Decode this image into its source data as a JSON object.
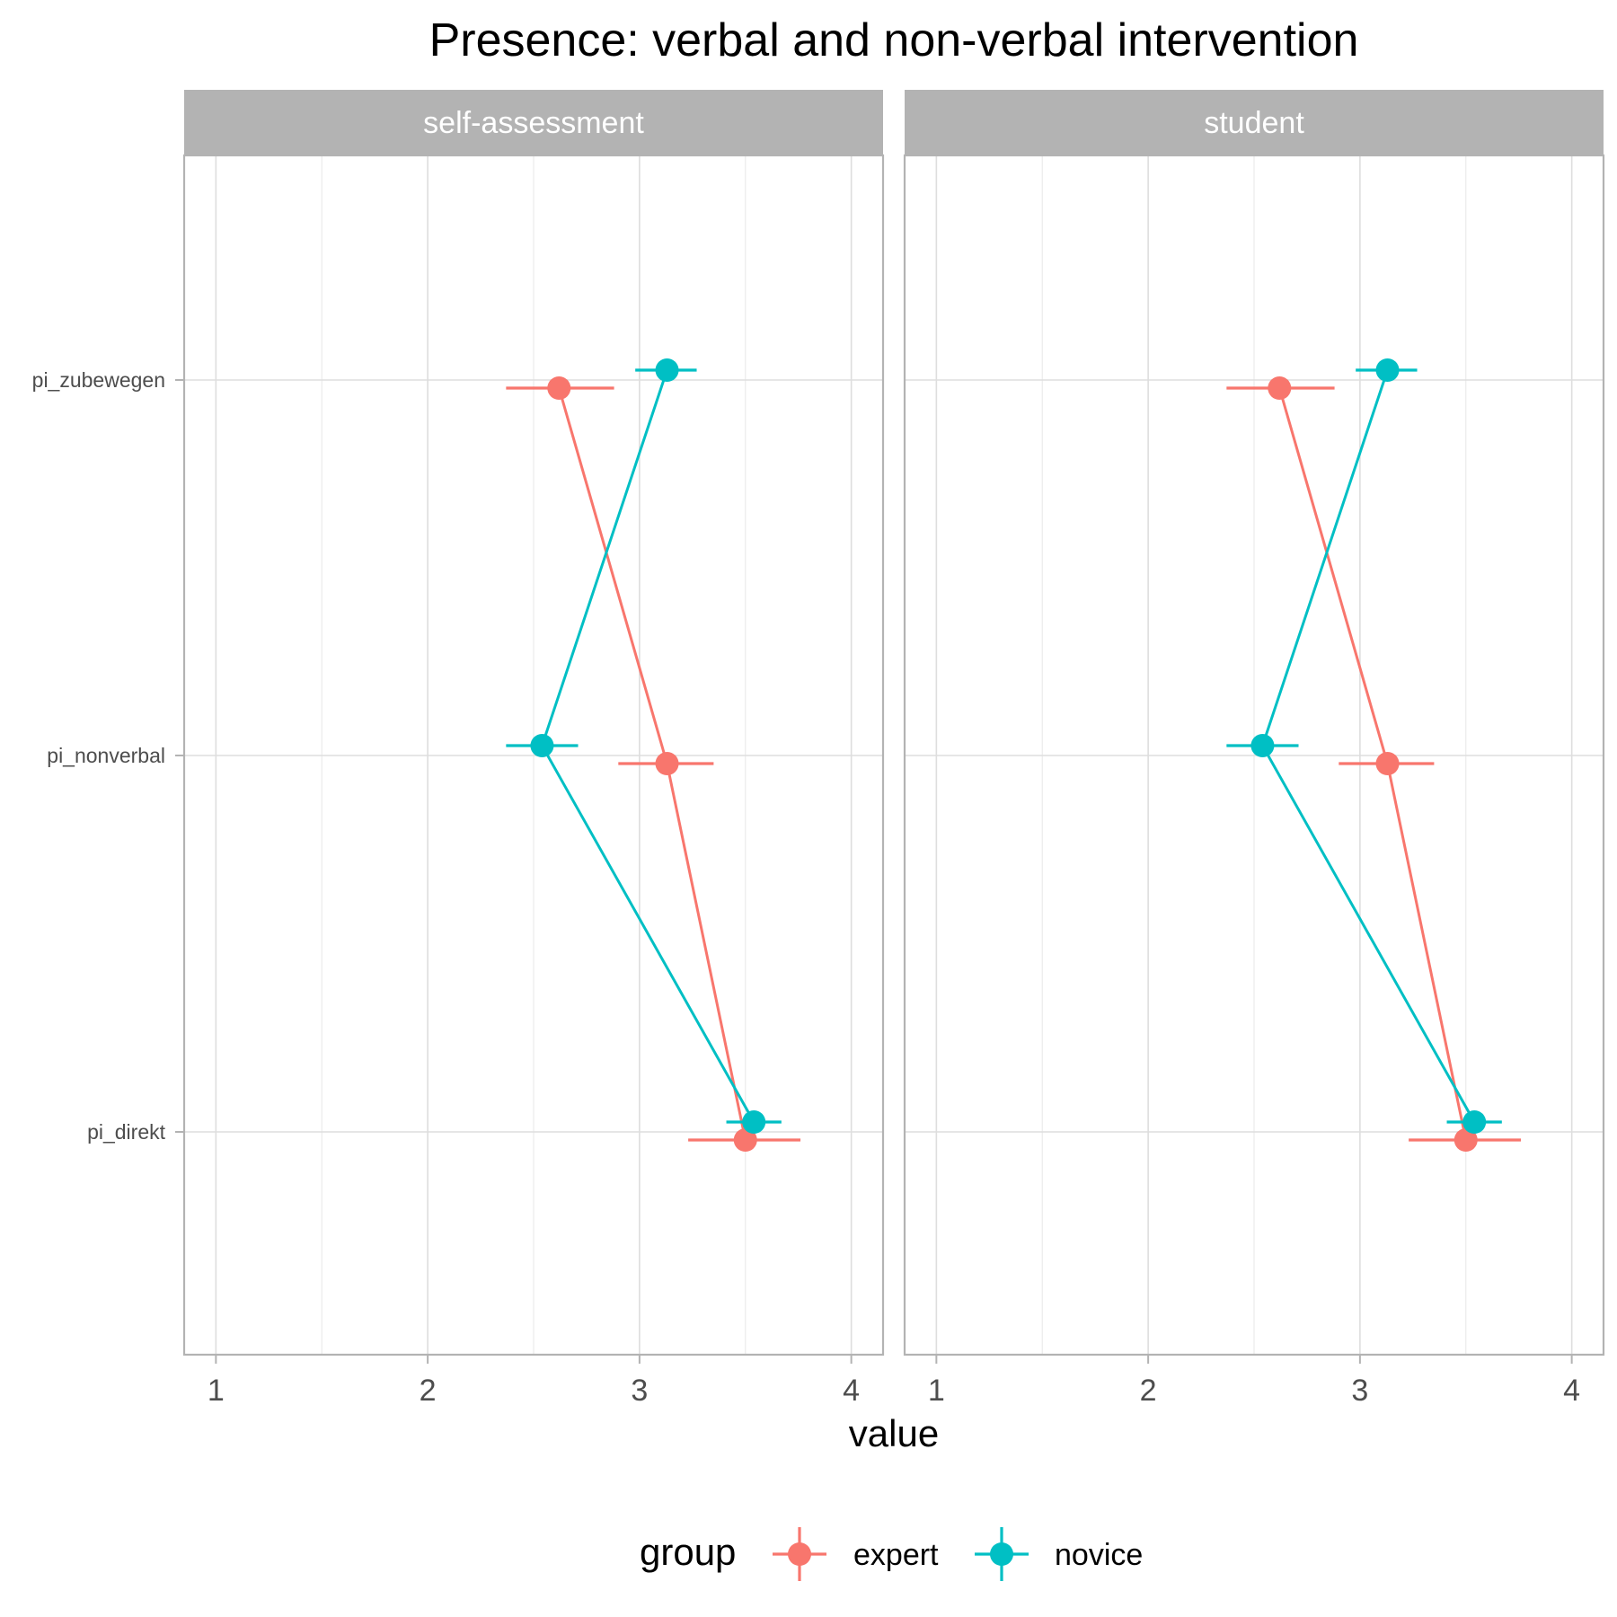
{
  "chart_data": {
    "type": "line",
    "title": "Presence: verbal and non-verbal intervention",
    "xlabel": "value",
    "ylabel": "",
    "xlim": [
      0.85,
      4.15
    ],
    "x_ticks": [
      "1",
      "2",
      "3",
      "4"
    ],
    "categories": [
      "pi_zubewegen",
      "pi_nonverbal",
      "pi_direkt"
    ],
    "grid": true,
    "legend": {
      "title": "group",
      "placement": "bottom"
    },
    "facets": [
      {
        "label": "self-assessment",
        "series": [
          {
            "name": "expert",
            "color": "#F8766D",
            "values": [
              2.62,
              3.13,
              3.5
            ],
            "lower": [
              2.37,
              2.9,
              3.23
            ],
            "upper": [
              2.88,
              3.35,
              3.76
            ]
          },
          {
            "name": "novice",
            "color": "#00BFC4",
            "values": [
              3.13,
              2.54,
              3.54
            ],
            "lower": [
              2.98,
              2.37,
              3.41
            ],
            "upper": [
              3.27,
              2.71,
              3.67
            ]
          }
        ]
      },
      {
        "label": "student",
        "series": [
          {
            "name": "expert",
            "color": "#F8766D",
            "values": [
              2.62,
              3.13,
              3.5
            ],
            "lower": [
              2.37,
              2.9,
              3.23
            ],
            "upper": [
              2.88,
              3.35,
              3.76
            ]
          },
          {
            "name": "novice",
            "color": "#00BFC4",
            "values": [
              3.13,
              2.54,
              3.54
            ],
            "lower": [
              2.98,
              2.37,
              3.41
            ],
            "upper": [
              3.27,
              2.71,
              3.67
            ]
          }
        ]
      }
    ]
  }
}
